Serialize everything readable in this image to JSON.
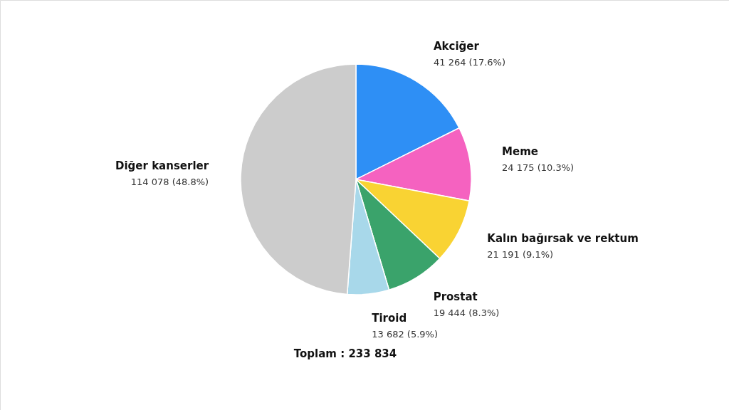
{
  "chart_data": {
    "type": "pie",
    "categories": [
      "Akciğer",
      "Meme",
      "Kalın bağırsak ve rektum",
      "Prostat",
      "Tiroid",
      "Diğer kanserler"
    ],
    "values": [
      41264,
      24175,
      21191,
      19444,
      13682,
      114078
    ],
    "colors": [
      "#2e8ff5",
      "#f562c0",
      "#f9d333",
      "#3aa36b",
      "#a8d8ea",
      "#cccccc"
    ],
    "value_labels": [
      "41 264 (17.6%)",
      "24 175 (10.3%)",
      "21 191 (9.1%)",
      "19 444 (8.3%)",
      "13 682 (5.9%)",
      "114 078 (48.8%)"
    ],
    "annotations": [
      "Toplam : 233 834"
    ]
  }
}
